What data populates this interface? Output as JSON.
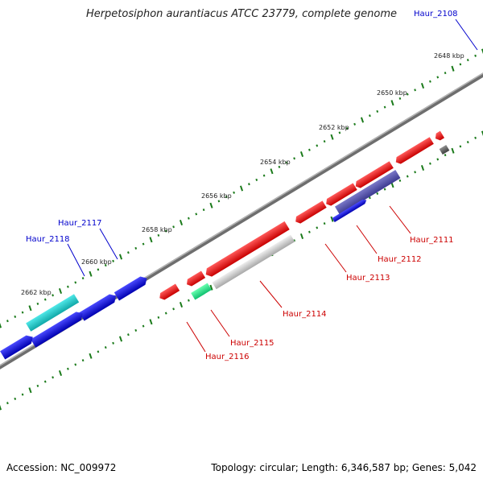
{
  "title": "Herpetosiphon aurantiacus ATCC 23779, complete genome",
  "footer": {
    "accession": "Accession: NC_009972",
    "stats": "Topology: circular; Length: 6,346,587 bp; Genes: 5,042"
  },
  "ticks": [
    "2648 kbp",
    "2650 kbp",
    "2652 kbp",
    "2654 kbp",
    "2656 kbp",
    "2658 kbp",
    "2660 kbp",
    "2662 kbp"
  ],
  "gene_labels": {
    "haur_2108": "Haur_2108",
    "haur_2111": "Haur_2111",
    "haur_2112": "Haur_2112",
    "haur_2113": "Haur_2113",
    "haur_2114": "Haur_2114",
    "haur_2115": "Haur_2115",
    "haur_2116": "Haur_2116",
    "haur_2117": "Haur_2117",
    "haur_2118": "Haur_2118"
  },
  "colors": {
    "backbone": "#8a8a8a",
    "tick": "#1a7a1a",
    "reverse_gene": "#ee1111",
    "forward_gene": "#1111dd",
    "label_red": "#cc0000",
    "label_blue": "#0000cc"
  }
}
